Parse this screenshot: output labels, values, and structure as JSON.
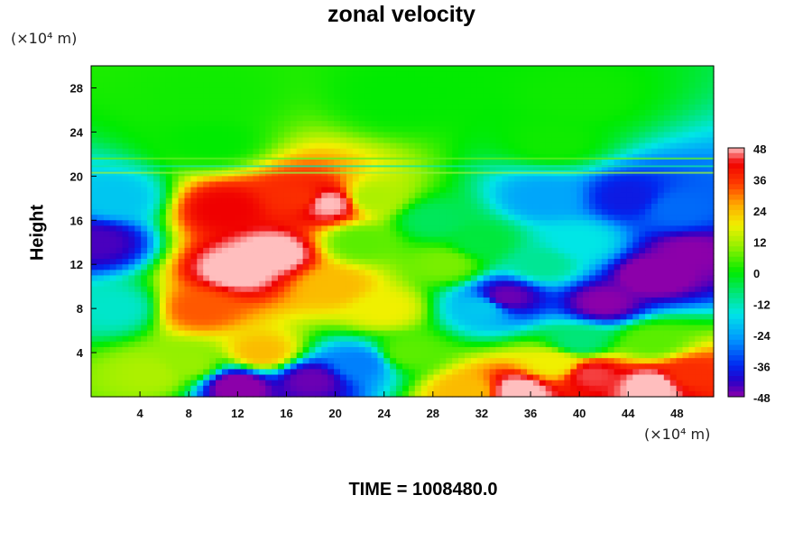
{
  "chart_data": {
    "type": "heatmap",
    "title": "zonal velocity",
    "xlabel": "",
    "ylabel": "Height",
    "x_unit": "(×10⁴ m)",
    "y_unit": "(×10⁴ m)",
    "xlim": [
      0,
      51
    ],
    "ylim": [
      0,
      30
    ],
    "x_ticks": [
      4,
      8,
      12,
      16,
      20,
      24,
      28,
      32,
      36,
      40,
      44,
      48
    ],
    "y_ticks": [
      4,
      8,
      12,
      16,
      20,
      24,
      28
    ],
    "colorbar": {
      "range": [
        -48,
        48
      ],
      "ticks": [
        48,
        36,
        24,
        12,
        0,
        -12,
        -24,
        -36,
        -48
      ]
    },
    "features": [
      {
        "x": 10,
        "y": 27,
        "value": 1
      },
      {
        "x": 25,
        "y": 27,
        "value": 0
      },
      {
        "x": 40,
        "y": 27,
        "value": 1
      },
      {
        "x": 10,
        "y": 23,
        "value": 0
      },
      {
        "x": 38,
        "y": 23,
        "value": 1
      },
      {
        "x": 0.5,
        "y": 14,
        "value": -44
      },
      {
        "x": 2,
        "y": 8,
        "value": -14
      },
      {
        "x": 2,
        "y": 18,
        "value": -20
      },
      {
        "x": 5,
        "y": 2,
        "value": 12
      },
      {
        "x": 12,
        "y": 11.5,
        "value": 50
      },
      {
        "x": 15,
        "y": 13,
        "value": 50
      },
      {
        "x": 11,
        "y": 17,
        "value": 42
      },
      {
        "x": 17,
        "y": 18,
        "value": 36
      },
      {
        "x": 19.5,
        "y": 17.5,
        "value": 48
      },
      {
        "x": 9,
        "y": 8,
        "value": 32
      },
      {
        "x": 20,
        "y": 10,
        "value": 24
      },
      {
        "x": 23,
        "y": 18,
        "value": 12
      },
      {
        "x": 24,
        "y": 8,
        "value": 18
      },
      {
        "x": 22,
        "y": 14,
        "value": 6
      },
      {
        "x": 28,
        "y": 16,
        "value": -6
      },
      {
        "x": 29,
        "y": 12,
        "value": 8
      },
      {
        "x": 32,
        "y": 14,
        "value": -4
      },
      {
        "x": 32,
        "y": 8,
        "value": -20
      },
      {
        "x": 34,
        "y": 9,
        "value": -46
      },
      {
        "x": 37,
        "y": 12,
        "value": -10
      },
      {
        "x": 37,
        "y": 18,
        "value": -24
      },
      {
        "x": 40,
        "y": 14,
        "value": -16
      },
      {
        "x": 44,
        "y": 18,
        "value": -38
      },
      {
        "x": 48,
        "y": 17,
        "value": -30
      },
      {
        "x": 42,
        "y": 8.5,
        "value": -48
      },
      {
        "x": 46,
        "y": 11,
        "value": -50
      },
      {
        "x": 49,
        "y": 13,
        "value": -48
      },
      {
        "x": 40,
        "y": 5,
        "value": -8
      },
      {
        "x": 46,
        "y": 5,
        "value": 6
      },
      {
        "x": 12,
        "y": 1,
        "value": -50
      },
      {
        "x": 18,
        "y": 1.5,
        "value": -46
      },
      {
        "x": 22,
        "y": 3,
        "value": -28
      },
      {
        "x": 14,
        "y": 4,
        "value": 24
      },
      {
        "x": 8,
        "y": 3,
        "value": 10
      },
      {
        "x": 26,
        "y": 4,
        "value": 6
      },
      {
        "x": 31,
        "y": 0.5,
        "value": 24
      },
      {
        "x": 35,
        "y": 0.5,
        "value": 50
      },
      {
        "x": 41,
        "y": 2,
        "value": 44
      },
      {
        "x": 46,
        "y": 1,
        "value": 50
      },
      {
        "x": 49,
        "y": 2,
        "value": 36
      },
      {
        "x": 38,
        "y": 3,
        "value": 18
      }
    ]
  },
  "time_label": "TIME = 1008480.0"
}
